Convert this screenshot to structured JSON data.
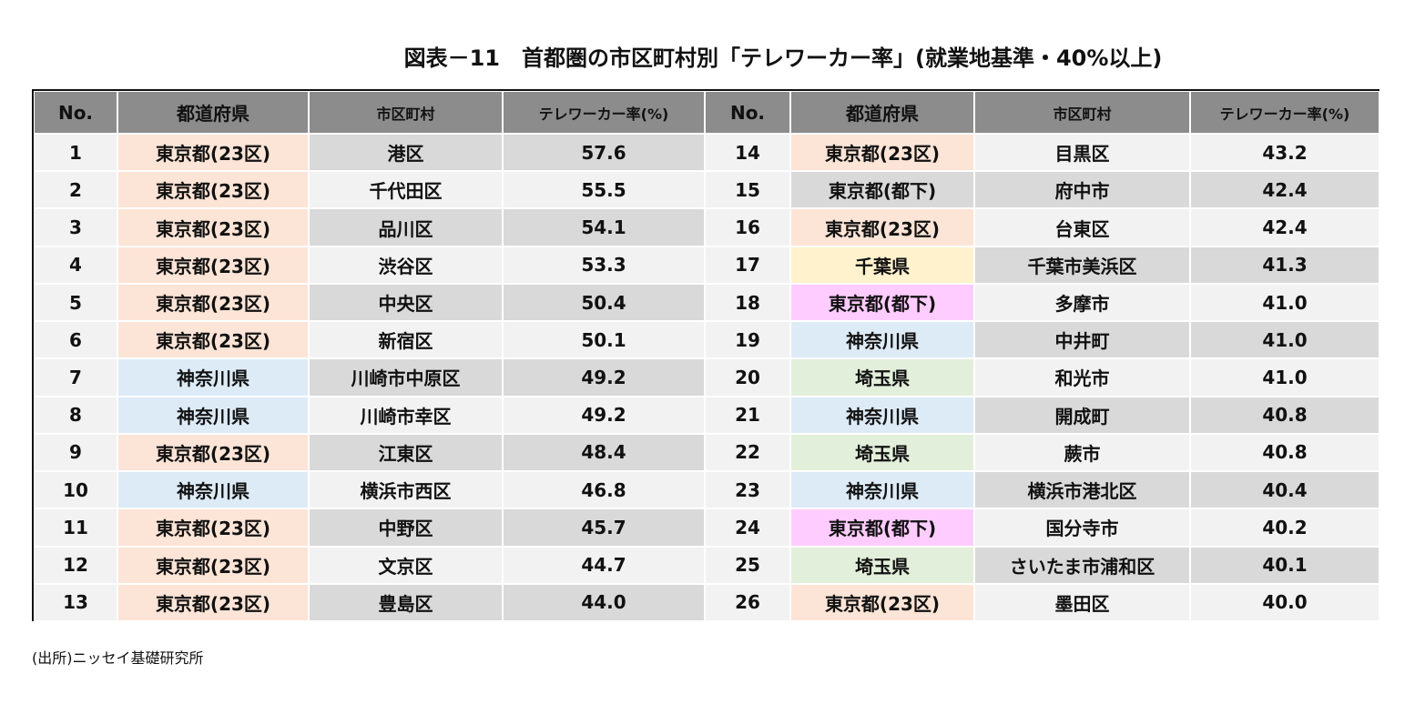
{
  "title": "図表－11　首都圏の市区町村別「テレワーカー率」(就業地基準・40%以上)",
  "table": {
    "header": [
      "No.",
      "都道府県",
      "市区町村",
      "テレワーカー率(%)"
    ],
    "rows": [
      {
        "no": "1",
        "pref": "東京都(23区)",
        "city": "港区",
        "rate": "57.6",
        "color": "#fce4d6"
      },
      {
        "no": "2",
        "pref": "東京都(23区)",
        "city": "千代田区",
        "rate": "55.5",
        "color": "#fce4d6"
      },
      {
        "no": "3",
        "pref": "東京都(23区)",
        "city": "品川区",
        "rate": "54.1",
        "color": "#fce4d6"
      },
      {
        "no": "4",
        "pref": "東京都(23区)",
        "city": "渋谷区",
        "rate": "53.3",
        "color": "#fce4d6"
      },
      {
        "no": "5",
        "pref": "東京都(23区)",
        "city": "中央区",
        "rate": "50.4",
        "color": "#fce4d6"
      },
      {
        "no": "6",
        "pref": "東京都(23区)",
        "city": "新宿区",
        "rate": "50.1",
        "color": "#fce4d6"
      },
      {
        "no": "7",
        "pref": "神奈川県",
        "city": "川崎市中原区",
        "rate": "49.2",
        "color": "#ddebf7"
      },
      {
        "no": "8",
        "pref": "神奈川県",
        "city": "川崎市幸区",
        "rate": "49.2",
        "color": "#ddebf7"
      },
      {
        "no": "9",
        "pref": "東京都(23区)",
        "city": "江東区",
        "rate": "48.4",
        "color": "#fce4d6"
      },
      {
        "no": "10",
        "pref": "神奈川県",
        "city": "横浜市西区",
        "rate": "46.8",
        "color": "#ddebf7"
      },
      {
        "no": "11",
        "pref": "東京都(23区)",
        "city": "中野区",
        "rate": "45.7",
        "color": "#fce4d6"
      },
      {
        "no": "12",
        "pref": "東京都(23区)",
        "city": "文京区",
        "rate": "44.7",
        "color": "#fce4d6"
      },
      {
        "no": "13",
        "pref": "東京都(23区)",
        "city": "豊島区",
        "rate": "44.0",
        "color": "#fce4d6"
      },
      {
        "no": "14",
        "pref": "東京都(23区)",
        "city": "目黒区",
        "rate": "43.2",
        "color": "#fce4d6"
      },
      {
        "no": "15",
        "pref": "東京都(都下)",
        "city": "府中市",
        "rate": "42.4"
      },
      {
        "no": "16",
        "pref": "東京都(23区)",
        "city": "台東区",
        "rate": "42.4",
        "color": "#fce4d6"
      },
      {
        "no": "17",
        "pref": "千葉県",
        "city": "千葉市美浜区",
        "rate": "41.3",
        "color": "#fff2cc"
      },
      {
        "no": "18",
        "pref": "東京都(都下)",
        "city": "多摩市",
        "rate": "41.0",
        "color": "#ffccff"
      },
      {
        "no": "19",
        "pref": "神奈川県",
        "city": "中井町",
        "rate": "41.0",
        "color": "#ddebf7"
      },
      {
        "no": "20",
        "pref": "埼玉県",
        "city": "和光市",
        "rate": "41.0",
        "color": "#e2efda"
      },
      {
        "no": "21",
        "pref": "神奈川県",
        "city": "開成町",
        "rate": "40.8",
        "color": "#ddebf7"
      },
      {
        "no": "22",
        "pref": "埼玉県",
        "city": "蕨市",
        "rate": "40.8",
        "color": "#e2efda"
      },
      {
        "no": "23",
        "pref": "神奈川県",
        "city": "横浜市港北区",
        "rate": "40.4",
        "color": "#ddebf7"
      },
      {
        "no": "24",
        "pref": "東京都(都下)",
        "city": "国分寺市",
        "rate": "40.2",
        "color": "#ffccff"
      },
      {
        "no": "25",
        "pref": "埼玉県",
        "city": "さいたま市浦和区",
        "rate": "40.1",
        "color": "#e2efda"
      },
      {
        "no": "26",
        "pref": "東京都(23区)",
        "city": "墨田区",
        "rate": "40.0",
        "color": "#fce4d6"
      }
    ]
  },
  "source": "(出所)ニッセイ基礎研究所"
}
